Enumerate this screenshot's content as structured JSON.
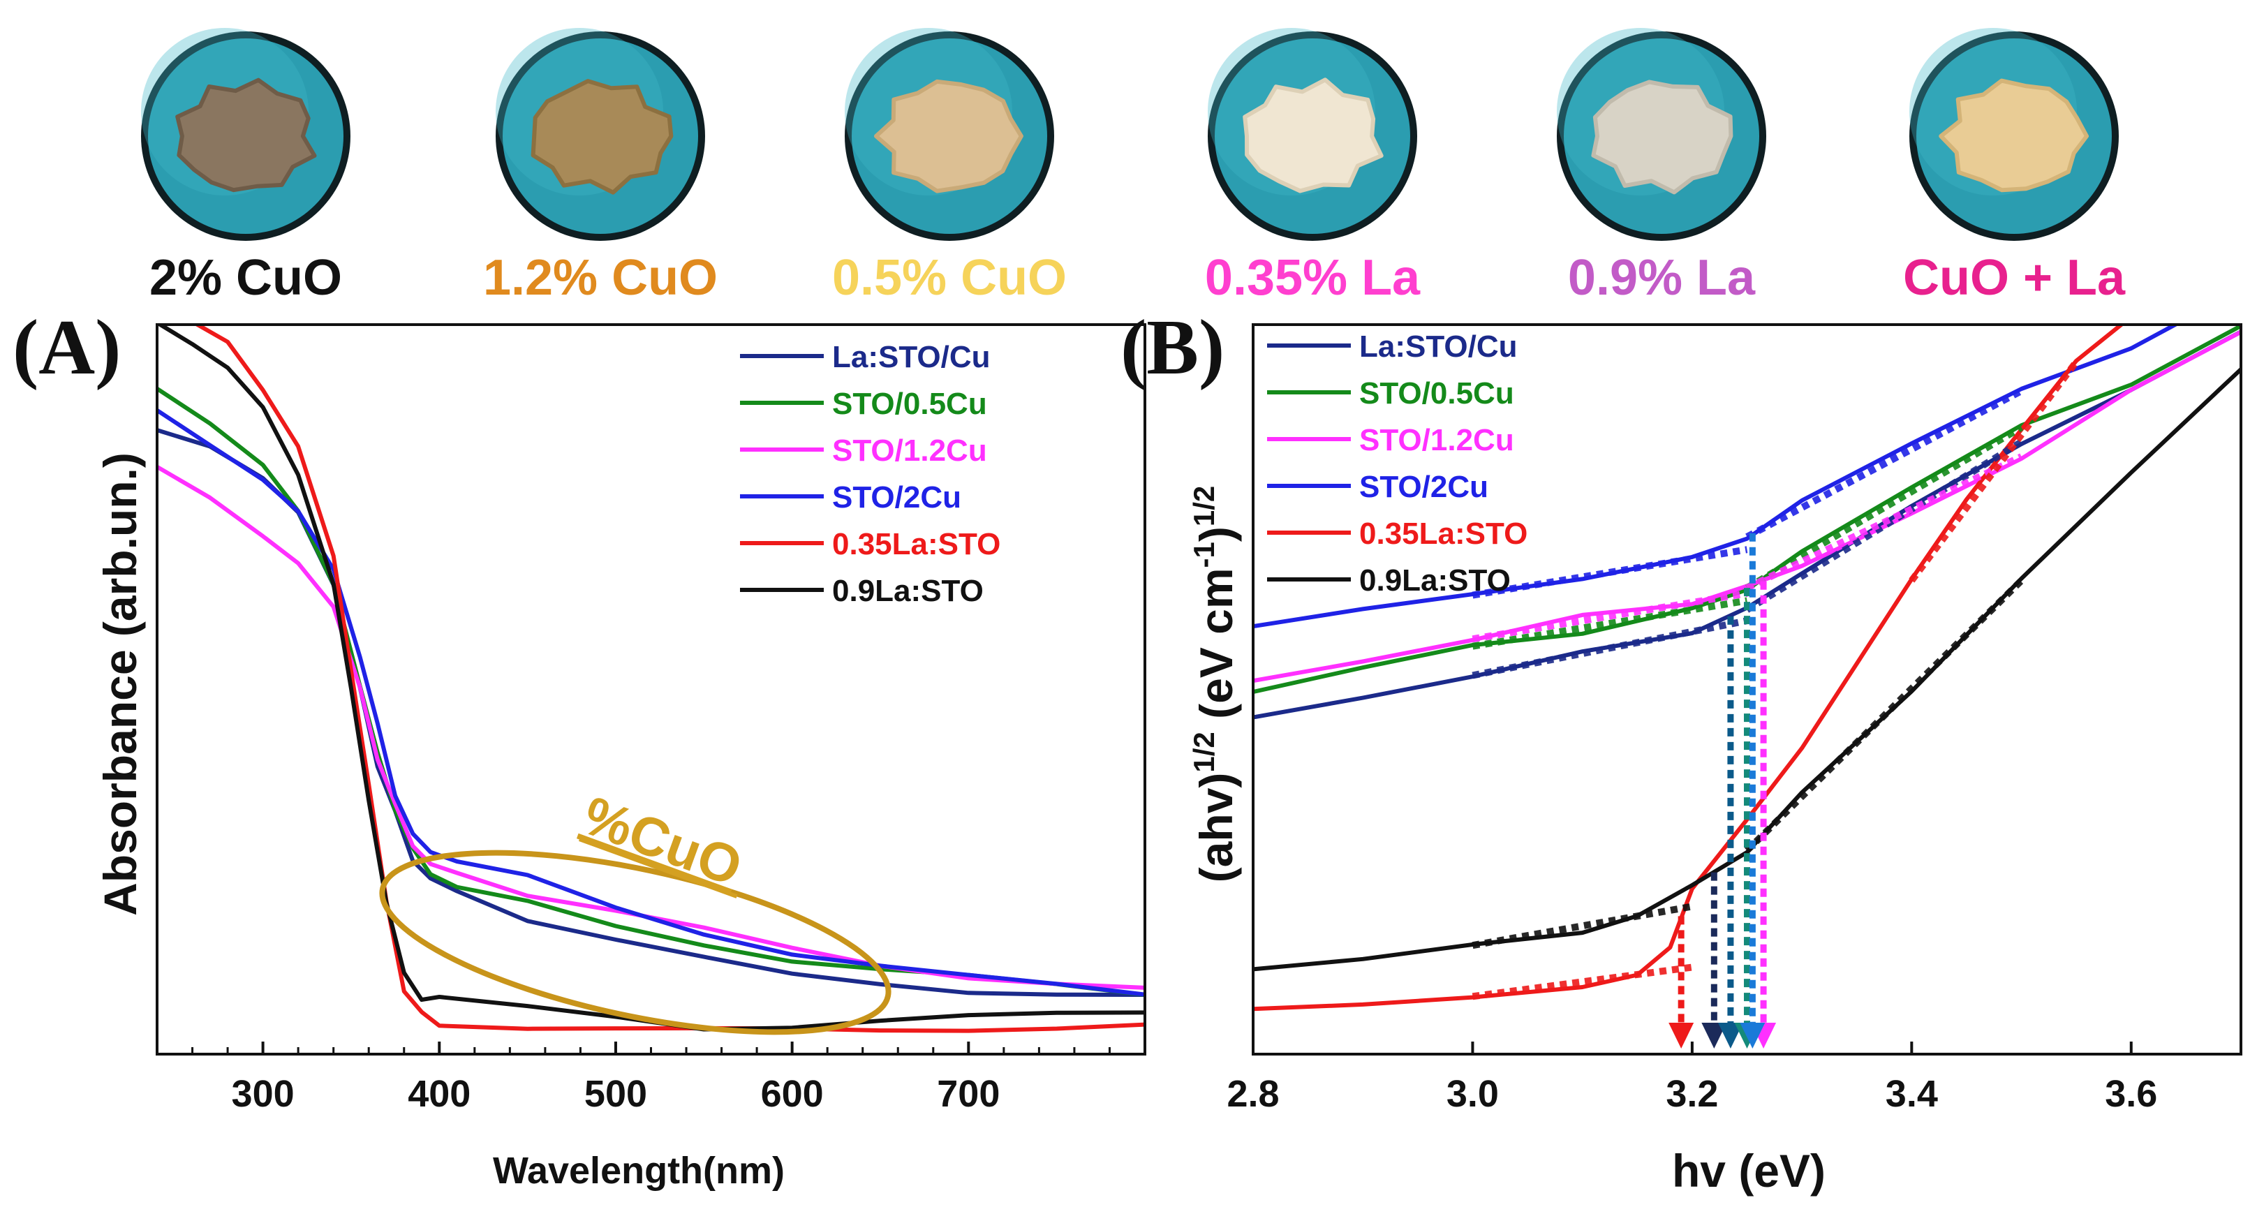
{
  "samples": [
    {
      "label": "2% CuO",
      "color": "#111111",
      "powder": "#8a7660",
      "powder_edge": "#6f5c48"
    },
    {
      "label": "1.2% CuO",
      "color": "#e08a1e",
      "powder": "#a88a58",
      "powder_edge": "#8c7040"
    },
    {
      "label": "0.5% CuO",
      "color": "#f6d35a",
      "powder": "#dcbf93",
      "powder_edge": "#c9aa78"
    },
    {
      "label": "0.35% La",
      "color": "#ff3fcf",
      "powder": "#f0e6d2",
      "powder_edge": "#ddd0b6"
    },
    {
      "label": "0.9% La",
      "color": "#c25bc7",
      "powder": "#d8d3c6",
      "powder_edge": "#c1bbac"
    },
    {
      "label": "CuO + La",
      "color": "#e8218e",
      "powder": "#e9cc95",
      "powder_edge": "#d4b478"
    }
  ],
  "chart_data": [
    {
      "panel": "(A)",
      "type": "line",
      "xlabel": "Wavelength(nm)",
      "ylabel": "Absorbance (arb.un.)",
      "xlim": [
        240,
        800
      ],
      "ylim": [
        0,
        1.0
      ],
      "xticks": [
        300,
        400,
        500,
        600,
        700
      ],
      "legend_position": "top-right",
      "annotation": {
        "text": "%CuO",
        "color": "#d4a021",
        "ellipse_color": "#c8941a"
      },
      "series": [
        {
          "name": "La:STO/Cu",
          "color": "#1b2a8a",
          "legend_text_color": "#1b2a8a",
          "x": [
            240,
            270,
            300,
            320,
            340,
            355,
            365,
            375,
            385,
            395,
            410,
            450,
            500,
            550,
            600,
            650,
            700,
            750,
            800
          ],
          "y": [
            0.83,
            0.8,
            0.76,
            0.71,
            0.61,
            0.47,
            0.37,
            0.3,
            0.24,
            0.21,
            0.19,
            0.155,
            0.125,
            0.1,
            0.08,
            0.07,
            0.06,
            0.055,
            0.05
          ]
        },
        {
          "name": "STO/0.5Cu",
          "color": "#148a1a",
          "legend_text_color": "#148a1a",
          "x": [
            240,
            270,
            300,
            320,
            340,
            355,
            365,
            375,
            385,
            395,
            410,
            450,
            500,
            550,
            600,
            650,
            700,
            750,
            800
          ],
          "y": [
            0.88,
            0.84,
            0.78,
            0.72,
            0.62,
            0.48,
            0.38,
            0.31,
            0.25,
            0.22,
            0.205,
            0.18,
            0.15,
            0.125,
            0.1,
            0.085,
            0.075,
            0.065,
            0.055
          ]
        },
        {
          "name": "STO/1.2Cu",
          "color": "#ff30ff",
          "legend_text_color": "#ff30ff",
          "x": [
            240,
            270,
            300,
            320,
            340,
            355,
            365,
            375,
            385,
            395,
            410,
            450,
            500,
            550,
            600,
            650,
            700,
            750,
            800
          ],
          "y": [
            0.78,
            0.73,
            0.68,
            0.64,
            0.58,
            0.47,
            0.38,
            0.31,
            0.26,
            0.23,
            0.215,
            0.19,
            0.165,
            0.14,
            0.115,
            0.095,
            0.08,
            0.07,
            0.06
          ]
        },
        {
          "name": "STO/2Cu",
          "color": "#1f22e6",
          "legend_text_color": "#1f22e6",
          "x": [
            240,
            270,
            300,
            320,
            340,
            355,
            365,
            375,
            385,
            395,
            410,
            450,
            500,
            550,
            600,
            650,
            700,
            750,
            800
          ],
          "y": [
            0.85,
            0.81,
            0.76,
            0.72,
            0.64,
            0.52,
            0.42,
            0.33,
            0.27,
            0.25,
            0.24,
            0.215,
            0.175,
            0.14,
            0.11,
            0.09,
            0.075,
            0.065,
            0.055
          ]
        },
        {
          "name": "0.35La:STO",
          "color": "#ee1a1a",
          "legend_text_color": "#ee1a1a",
          "x": [
            240,
            260,
            280,
            300,
            320,
            340,
            350,
            360,
            370,
            380,
            390,
            400,
            450,
            500,
            550,
            600,
            650,
            700,
            750,
            800
          ],
          "y": [
            1.0,
            0.98,
            0.95,
            0.88,
            0.8,
            0.65,
            0.5,
            0.34,
            0.18,
            0.06,
            0.025,
            0.015,
            0.008,
            0.004,
            0.002,
            0.004,
            0.006,
            0.008,
            0.009,
            0.01
          ]
        },
        {
          "name": "0.9La:STO",
          "color": "#111111",
          "legend_text_color": "#111111",
          "x": [
            240,
            260,
            280,
            300,
            320,
            340,
            350,
            360,
            370,
            380,
            390,
            400,
            450,
            500,
            550,
            600,
            650,
            700,
            750,
            800
          ],
          "y": [
            0.97,
            0.94,
            0.91,
            0.86,
            0.77,
            0.62,
            0.47,
            0.32,
            0.18,
            0.08,
            0.05,
            0.045,
            0.035,
            0.025,
            0.01,
            0.01,
            0.015,
            0.02,
            0.025,
            0.03
          ]
        }
      ]
    },
    {
      "panel": "(B)",
      "type": "line",
      "xlabel": "hv (eV)",
      "ylabel": "(ahv)1/2 (eV cm-1)1/2",
      "ylabel_parts": {
        "base": "(ahv)",
        "exp1": "1/2",
        "mid": " (eV cm",
        "exp2": "-1",
        "close": ")",
        "exp3": "1/2"
      },
      "xlim": [
        2.8,
        3.7
      ],
      "ylim": [
        0,
        1.0
      ],
      "xticks": [
        2.8,
        3.0,
        3.2,
        3.4,
        3.6
      ],
      "legend_position": "top-left",
      "band_gaps": [
        {
          "series": "0.35La:STO",
          "value": 3.19,
          "color": "#ee1a1a"
        },
        {
          "series": "0.9La:STO",
          "value": 3.22,
          "color": "#1b2a5a"
        },
        {
          "series": "La:STO/Cu",
          "value": 3.235,
          "color": "#0b5a8a"
        },
        {
          "series": "STO/0.5Cu",
          "value": 3.25,
          "color": "#148a7a"
        },
        {
          "series": "STO/1.2Cu",
          "value": 3.265,
          "color": "#ff30ff"
        },
        {
          "series": "STO/2Cu",
          "value": 3.255,
          "color": "#1a7ad8"
        }
      ],
      "series": [
        {
          "name": "La:STO/Cu",
          "color": "#1b2a8a",
          "legend_text_color": "#1b2a8a",
          "x": [
            2.8,
            2.9,
            3.0,
            3.1,
            3.2,
            3.25,
            3.3,
            3.4,
            3.5,
            3.6,
            3.7
          ],
          "y": [
            0.44,
            0.47,
            0.5,
            0.53,
            0.56,
            0.59,
            0.64,
            0.73,
            0.82,
            0.89,
            0.97
          ]
        },
        {
          "name": "STO/0.5Cu",
          "color": "#148a1a",
          "legend_text_color": "#148a1a",
          "x": [
            2.8,
            2.9,
            3.0,
            3.1,
            3.2,
            3.25,
            3.3,
            3.4,
            3.5,
            3.6,
            3.7
          ],
          "y": [
            0.48,
            0.51,
            0.54,
            0.56,
            0.59,
            0.62,
            0.67,
            0.76,
            0.84,
            0.9,
            0.98
          ]
        },
        {
          "name": "STO/1.2Cu",
          "color": "#ff30ff",
          "legend_text_color": "#ff30ff",
          "x": [
            2.8,
            2.9,
            3.0,
            3.1,
            3.2,
            3.25,
            3.3,
            3.4,
            3.5,
            3.6,
            3.7
          ],
          "y": [
            0.49,
            0.52,
            0.55,
            0.58,
            0.6,
            0.62,
            0.65,
            0.72,
            0.8,
            0.89,
            0.97
          ]
        },
        {
          "name": "STO/2Cu",
          "color": "#1f22e6",
          "legend_text_color": "#1f22e6",
          "x": [
            2.8,
            2.9,
            3.0,
            3.1,
            3.2,
            3.25,
            3.3,
            3.4,
            3.5,
            3.6,
            3.7
          ],
          "y": [
            0.57,
            0.59,
            0.61,
            0.635,
            0.66,
            0.69,
            0.74,
            0.82,
            0.89,
            0.95,
            1.03
          ]
        },
        {
          "name": "0.35La:STO",
          "color": "#ee1a1a",
          "legend_text_color": "#ee1a1a",
          "x": [
            2.8,
            2.9,
            3.0,
            3.1,
            3.15,
            3.18,
            3.2,
            3.25,
            3.3,
            3.4,
            3.45,
            3.5,
            3.55,
            3.6,
            3.65
          ],
          "y": [
            0.04,
            0.05,
            0.06,
            0.07,
            0.09,
            0.13,
            0.21,
            0.3,
            0.4,
            0.63,
            0.74,
            0.84,
            0.93,
            0.99,
            1.05
          ]
        },
        {
          "name": "0.9La:STO",
          "color": "#111111",
          "legend_text_color": "#111111",
          "x": [
            2.8,
            2.9,
            3.0,
            3.1,
            3.15,
            3.2,
            3.25,
            3.3,
            3.4,
            3.5,
            3.6,
            3.7
          ],
          "y": [
            0.1,
            0.11,
            0.13,
            0.15,
            0.17,
            0.21,
            0.26,
            0.34,
            0.48,
            0.63,
            0.78,
            0.92
          ]
        }
      ]
    }
  ]
}
